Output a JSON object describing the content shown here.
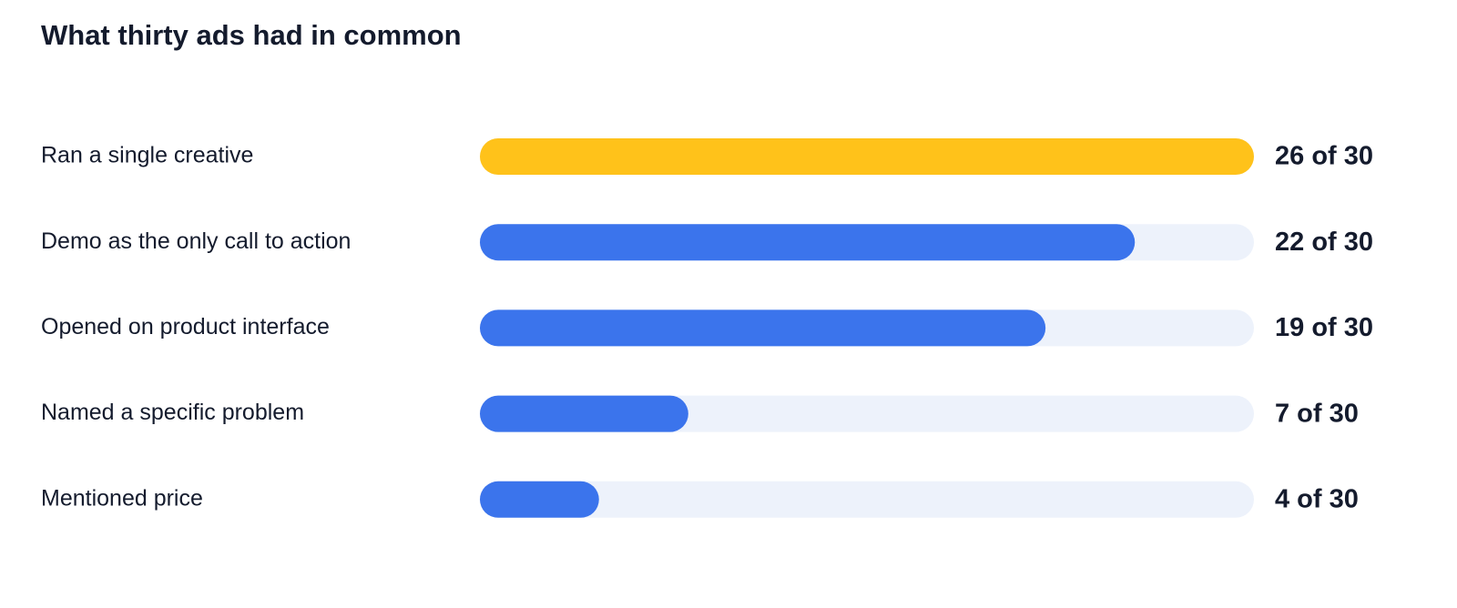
{
  "chart_data": {
    "type": "bar",
    "orientation": "horizontal",
    "title": "What thirty ads had in common",
    "categories": [
      "Ran a single creative",
      "Demo as the only call to action",
      "Opened on product interface",
      "Named a specific problem",
      "Mentioned price"
    ],
    "values": [
      26,
      22,
      19,
      7,
      4
    ],
    "value_labels": [
      "26 of 30",
      "22 of 30",
      "19 of 30",
      "7 of 30",
      "4 of 30"
    ],
    "colors": [
      "#ffc21a",
      "#3b74ec",
      "#3b74ec",
      "#3b74ec",
      "#3b74ec"
    ],
    "track_color": "#edf2fb"
  }
}
